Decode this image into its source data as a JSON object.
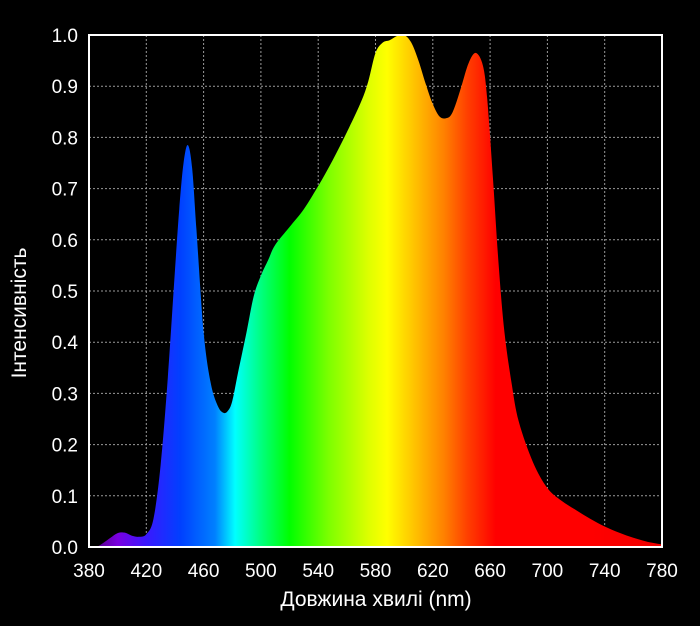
{
  "chart_data": {
    "type": "area",
    "xlabel": "Довжина хвилі (nm)",
    "ylabel": "Інтенсивність",
    "xlim": [
      380,
      780
    ],
    "ylim": [
      0,
      1.0
    ],
    "x_ticks": [
      "380",
      "420",
      "460",
      "500",
      "540",
      "580",
      "620",
      "660",
      "700",
      "740",
      "780"
    ],
    "y_ticks": [
      "0.0",
      "0.1",
      "0.2",
      "0.3",
      "0.4",
      "0.5",
      "0.6",
      "0.7",
      "0.8",
      "0.9",
      "1.0"
    ],
    "grid": true,
    "fill": "visible-spectrum gradient",
    "x": [
      380,
      385,
      390,
      395,
      400,
      405,
      410,
      415,
      420,
      425,
      430,
      435,
      440,
      443,
      446,
      449,
      452,
      455,
      460,
      465,
      470,
      474,
      477,
      480,
      484,
      490,
      495,
      500,
      505,
      510,
      520,
      530,
      540,
      550,
      560,
      570,
      575,
      580,
      585,
      590,
      595,
      600,
      605,
      610,
      615,
      620,
      625,
      630,
      633,
      636,
      640,
      645,
      650,
      655,
      658,
      662,
      666,
      670,
      675,
      680,
      690,
      700,
      710,
      720,
      730,
      740,
      750,
      760,
      770,
      780
    ],
    "y": [
      0.0,
      0.0,
      0.008,
      0.018,
      0.027,
      0.028,
      0.022,
      0.02,
      0.025,
      0.055,
      0.16,
      0.33,
      0.54,
      0.66,
      0.75,
      0.785,
      0.74,
      0.62,
      0.42,
      0.32,
      0.275,
      0.262,
      0.266,
      0.285,
      0.34,
      0.42,
      0.49,
      0.53,
      0.56,
      0.59,
      0.625,
      0.66,
      0.705,
      0.755,
      0.81,
      0.87,
      0.91,
      0.965,
      0.985,
      0.99,
      0.998,
      1.0,
      0.985,
      0.95,
      0.905,
      0.865,
      0.84,
      0.838,
      0.845,
      0.865,
      0.9,
      0.945,
      0.965,
      0.94,
      0.875,
      0.72,
      0.55,
      0.42,
      0.32,
      0.245,
      0.165,
      0.115,
      0.09,
      0.072,
      0.055,
      0.04,
      0.028,
      0.018,
      0.01,
      0.005
    ]
  }
}
